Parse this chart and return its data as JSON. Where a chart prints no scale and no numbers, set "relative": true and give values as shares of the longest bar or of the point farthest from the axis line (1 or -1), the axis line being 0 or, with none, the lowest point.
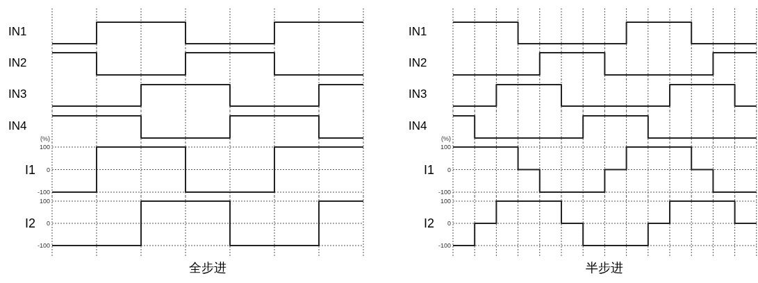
{
  "chart_data": [
    {
      "type": "step",
      "ylabel": "IN1",
      "relative": true,
      "color": "#222222",
      "categories": [
        null,
        null,
        null,
        null,
        null,
        null,
        null,
        null
      ],
      "values": [
        0,
        1,
        1,
        0,
        0,
        1,
        1,
        1
      ],
      "grid": "x",
      "tick_labels": false
    },
    {
      "type": "step",
      "ylabel": "IN2",
      "relative": true,
      "color": "#222222",
      "categories": [
        null,
        null,
        null,
        null,
        null,
        null,
        null,
        null
      ],
      "values": [
        1,
        0,
        0,
        1,
        1,
        0,
        0,
        0
      ],
      "grid": "x",
      "tick_labels": false
    },
    {
      "type": "step",
      "ylabel": "IN3",
      "relative": true,
      "color": "#222222",
      "categories": [
        null,
        null,
        null,
        null,
        null,
        null,
        null,
        null
      ],
      "values": [
        0,
        0,
        1,
        1,
        0,
        0,
        1,
        1
      ],
      "grid": "x",
      "tick_labels": false
    },
    {
      "type": "step",
      "ylabel": "IN4",
      "relative": true,
      "color": "#222222",
      "categories": [
        null,
        null,
        null,
        null,
        null,
        null,
        null,
        null
      ],
      "values": [
        1,
        1,
        0,
        0,
        1,
        1,
        0,
        0
      ],
      "grid": "x",
      "tick_labels": false
    },
    {
      "type": "step",
      "ylabel": "I1",
      "annotations": [
        "(%)"
      ],
      "color": "#222222",
      "categories": [
        null,
        null,
        null,
        null,
        null,
        null,
        null,
        null
      ],
      "values": [
        -100,
        100,
        100,
        -100,
        -100,
        100,
        100,
        100
      ],
      "ylim": [
        -100,
        100
      ],
      "yticks": [
        -100,
        0,
        100
      ],
      "grid": true,
      "tick_labels": "y"
    },
    {
      "type": "step",
      "ylabel": "I2",
      "annotations": [
        "全步进"
      ],
      "color": "#222222",
      "categories": [
        null,
        null,
        null,
        null,
        null,
        null,
        null,
        null
      ],
      "values": [
        -100,
        -100,
        100,
        100,
        -100,
        -100,
        100,
        100
      ],
      "ylim": [
        -100,
        100
      ],
      "yticks": [
        -100,
        0,
        100
      ],
      "grid": true,
      "tick_labels": "y"
    },
    {
      "type": "step",
      "ylabel": "IN1",
      "relative": true,
      "color": "#222222",
      "categories": [
        null,
        null,
        null,
        null,
        null,
        null,
        null,
        null,
        null,
        null,
        null,
        null,
        null,
        null,
        null
      ],
      "values": [
        1,
        1,
        1,
        0,
        0,
        0,
        0,
        0,
        1,
        1,
        1,
        0,
        0,
        0,
        0
      ],
      "grid": "x",
      "tick_labels": false
    },
    {
      "type": "step",
      "ylabel": "IN2",
      "relative": true,
      "color": "#222222",
      "categories": [
        null,
        null,
        null,
        null,
        null,
        null,
        null,
        null,
        null,
        null,
        null,
        null,
        null,
        null,
        null
      ],
      "values": [
        0,
        0,
        0,
        0,
        1,
        1,
        1,
        0,
        0,
        0,
        0,
        0,
        1,
        1,
        1
      ],
      "grid": "x",
      "tick_labels": false
    },
    {
      "type": "step",
      "ylabel": "IN3",
      "relative": true,
      "color": "#222222",
      "categories": [
        null,
        null,
        null,
        null,
        null,
        null,
        null,
        null,
        null,
        null,
        null,
        null,
        null,
        null,
        null
      ],
      "values": [
        0,
        0,
        1,
        1,
        1,
        0,
        0,
        0,
        0,
        0,
        1,
        1,
        1,
        0,
        0
      ],
      "grid": "x",
      "tick_labels": false
    },
    {
      "type": "step",
      "ylabel": "IN4",
      "relative": true,
      "color": "#222222",
      "categories": [
        null,
        null,
        null,
        null,
        null,
        null,
        null,
        null,
        null,
        null,
        null,
        null,
        null,
        null,
        null
      ],
      "values": [
        1,
        0,
        0,
        0,
        0,
        0,
        1,
        1,
        1,
        0,
        0,
        0,
        0,
        0,
        0
      ],
      "grid": "x",
      "tick_labels": false
    },
    {
      "type": "step",
      "ylabel": "I1",
      "annotations": [
        "(%)"
      ],
      "color": "#222222",
      "categories": [
        null,
        null,
        null,
        null,
        null,
        null,
        null,
        null,
        null,
        null,
        null,
        null,
        null,
        null,
        null
      ],
      "values": [
        100,
        100,
        100,
        0,
        -100,
        -100,
        -100,
        0,
        100,
        100,
        100,
        0,
        -100,
        -100,
        -100
      ],
      "ylim": [
        -100,
        100
      ],
      "yticks": [
        -100,
        0,
        100
      ],
      "grid": true,
      "tick_labels": "y"
    },
    {
      "type": "step",
      "ylabel": "I2",
      "annotations": [
        "半步进"
      ],
      "color": "#222222",
      "categories": [
        null,
        null,
        null,
        null,
        null,
        null,
        null,
        null,
        null,
        null,
        null,
        null,
        null,
        null,
        null
      ],
      "values": [
        -100,
        0,
        100,
        100,
        100,
        0,
        -100,
        -100,
        -100,
        0,
        100,
        100,
        100,
        0,
        0
      ],
      "ylim": [
        -100,
        100
      ],
      "yticks": [
        -100,
        0,
        100
      ],
      "grid": true,
      "tick_labels": "y"
    }
  ]
}
